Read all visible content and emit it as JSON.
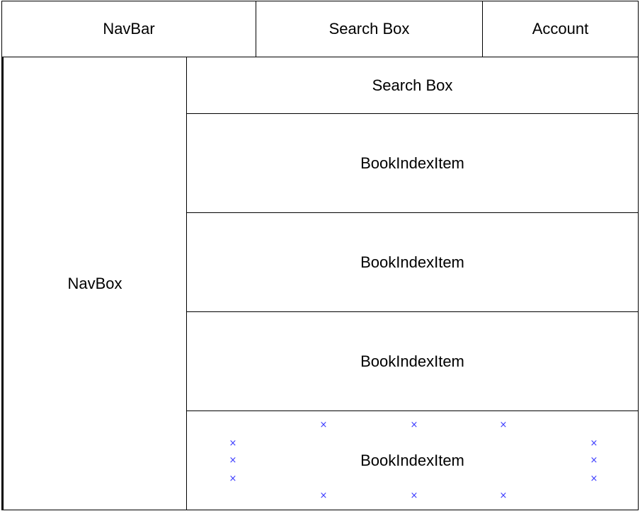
{
  "header": {
    "navbar_label": "NavBar",
    "search_label": "Search Box",
    "account_label": "Account"
  },
  "sidebar": {
    "navbox_label": "NavBox"
  },
  "main": {
    "search_label": "Search Box",
    "items": [
      {
        "label": "BookIndexItem"
      },
      {
        "label": "BookIndexItem"
      },
      {
        "label": "BookIndexItem"
      },
      {
        "label": "BookIndexItem"
      }
    ]
  },
  "selection": {
    "handle_glyph": "×",
    "handle_color": "#3b3bff"
  },
  "colors": {
    "stroke": "#000000",
    "fill": "#ffffff"
  }
}
